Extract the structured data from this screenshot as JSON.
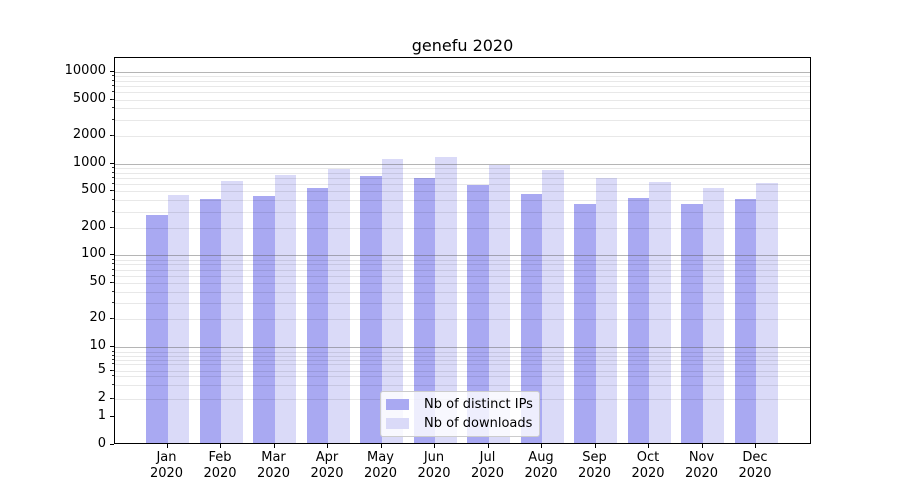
{
  "title": "genefu 2020",
  "legend": {
    "items": [
      {
        "label": "Nb of distinct IPs",
        "color": "#a9a9f2"
      },
      {
        "label": "Nb of downloads",
        "color": "#dadaf8"
      }
    ]
  },
  "chart_data": {
    "type": "bar",
    "title": "genefu 2020",
    "categories": [
      "Jan",
      "Feb",
      "Mar",
      "Apr",
      "May",
      "Jun",
      "Jul",
      "Aug",
      "Sep",
      "Oct",
      "Nov",
      "Dec"
    ],
    "category_year": "2020",
    "series": [
      {
        "name": "Nb of distinct IPs",
        "color": "#a9a9f2",
        "values": [
          265,
          395,
          420,
          520,
          705,
          660,
          555,
          445,
          350,
          400,
          345,
          390
        ]
      },
      {
        "name": "Nb of downloads",
        "color": "#dadaf8",
        "values": [
          435,
          620,
          720,
          825,
          1080,
          1130,
          920,
          818,
          670,
          600,
          515,
          580
        ]
      }
    ],
    "xlabel": "",
    "ylabel": "",
    "yscale": "log",
    "ylim": [
      0,
      14000
    ],
    "y_tick_values": [
      10000,
      5000,
      2000,
      1000,
      500,
      200,
      100,
      50,
      20,
      10,
      5,
      2,
      1,
      0
    ],
    "y_tick_labels": [
      "10000",
      "5000",
      "2000",
      "1000",
      "500",
      "200",
      "100",
      "50",
      "20",
      "10",
      "5",
      "2",
      "1",
      "0"
    ],
    "grid": true,
    "grid_over_bars": true,
    "legend_position": "lower center"
  }
}
